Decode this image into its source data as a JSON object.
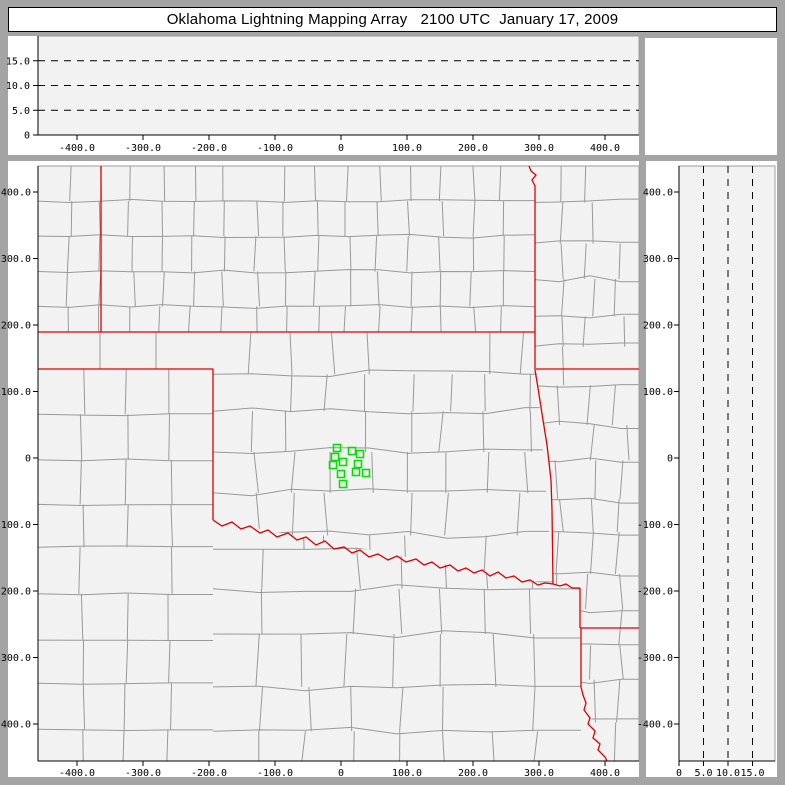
{
  "window": {
    "title": "Oklahoma Lightning Mapping Array   2100 UTC  January 17, 2009"
  },
  "colors": {
    "window_chrome": "#a4a4a4",
    "panel_margin": "#ffffff",
    "plot_background": "#f2f2f2",
    "plot_edge": "#9c9c9c",
    "axis": "#000000",
    "tick_text": "#000000",
    "county_line": "#999999",
    "state_border": "#dd0000",
    "station_marker": "#00e300",
    "dashed_line": "#000000"
  },
  "axes": {
    "east_west_ticks": {
      "values": [
        -400,
        -300,
        -200,
        -100,
        0,
        100,
        200,
        300,
        400
      ],
      "labels": [
        "-400.0",
        "-300.0",
        "-200.0",
        "-100.0",
        "0",
        "100.0",
        "200.0",
        "300.0",
        "400.0"
      ]
    },
    "north_south_ticks": {
      "values": [
        400,
        300,
        200,
        100,
        0,
        -100,
        -200,
        -300,
        -400
      ],
      "labels": [
        "400.0",
        "300.0",
        "200.0",
        "100.0",
        "0",
        "-100.0",
        "-200.0",
        "-300.0",
        "-400.0"
      ]
    },
    "altitude_ticks": {
      "values": [
        0,
        5,
        10,
        15
      ],
      "labels": [
        "0",
        "5.0",
        "10.0",
        "15.0"
      ]
    },
    "altitude_dashed_levels": [
      5,
      10,
      15
    ]
  },
  "stations_km": [
    [
      -6.1,
      15.0
    ],
    [
      16.7,
      10.5
    ],
    [
      28.8,
      6.0
    ],
    [
      -9.1,
      1.5
    ],
    [
      3.0,
      -6.0
    ],
    [
      25.8,
      -9.0
    ],
    [
      -12.1,
      -10.5
    ],
    [
      0.0,
      -24.1
    ],
    [
      22.7,
      -21.1
    ],
    [
      37.9,
      -22.6
    ],
    [
      3.0,
      -39.1
    ]
  ],
  "chart_data": [
    {
      "type": "scatter",
      "panel": "altitude-vs-east-west",
      "title": "",
      "xlabel": "",
      "ylabel": "",
      "xlim": [
        -459,
        452
      ],
      "ylim": [
        0,
        20
      ],
      "x_ticks": [
        -400,
        -300,
        -200,
        -100,
        0,
        100,
        200,
        300,
        400
      ],
      "y_ticks": [
        0,
        5,
        10,
        15
      ],
      "y_gridlines_dashed": [
        5,
        10,
        15
      ],
      "legend": "none",
      "series": [
        {
          "name": "lightning-sources",
          "points": []
        }
      ]
    },
    {
      "type": "scatter",
      "panel": "plan-view-map",
      "title": "",
      "xlabel": "",
      "ylabel": "",
      "xlim": [
        -459,
        452
      ],
      "ylim": [
        -456,
        439
      ],
      "x_ticks": [
        -400,
        -300,
        -200,
        -100,
        0,
        100,
        200,
        300,
        400
      ],
      "y_ticks": [
        400,
        300,
        200,
        100,
        0,
        -100,
        -200,
        -300,
        -400
      ],
      "legend": "none",
      "map_overlays": [
        "county-boundaries-gray",
        "state-borders-red"
      ],
      "series": [
        {
          "name": "lma-station-sites",
          "marker": "open-square",
          "color": "#00e300",
          "points": [
            [
              -6.1,
              15.0
            ],
            [
              16.7,
              10.5
            ],
            [
              28.8,
              6.0
            ],
            [
              -9.1,
              1.5
            ],
            [
              3.0,
              -6.0
            ],
            [
              25.8,
              -9.0
            ],
            [
              -12.1,
              -10.5
            ],
            [
              0.0,
              -24.1
            ],
            [
              22.7,
              -21.1
            ],
            [
              37.9,
              -22.6
            ],
            [
              3.0,
              -39.1
            ]
          ]
        },
        {
          "name": "lightning-sources",
          "points": []
        }
      ]
    },
    {
      "type": "scatter",
      "panel": "north-south-vs-altitude",
      "title": "",
      "xlabel": "",
      "ylabel": "",
      "xlim": [
        0,
        19.6
      ],
      "ylim": [
        -456,
        439
      ],
      "x_ticks": [
        0,
        5,
        10,
        15
      ],
      "y_ticks": [
        400,
        300,
        200,
        100,
        0,
        -100,
        -200,
        -300,
        -400
      ],
      "x_gridlines_dashed": [
        5,
        10,
        15
      ],
      "legend": "none",
      "series": [
        {
          "name": "lightning-sources",
          "points": []
        }
      ]
    }
  ]
}
